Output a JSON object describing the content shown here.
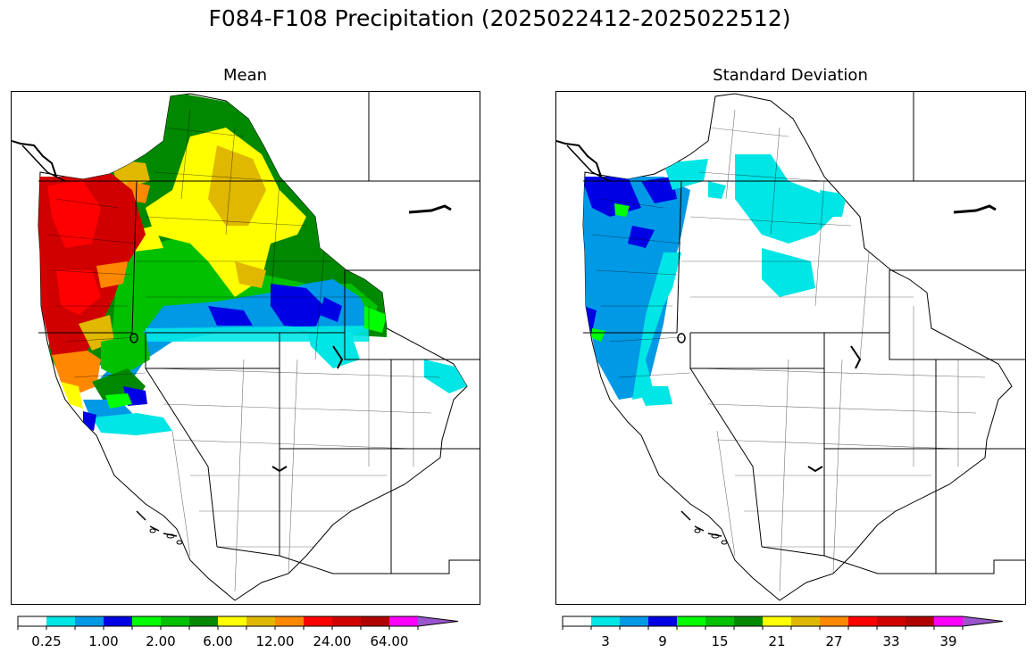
{
  "figure": {
    "title": "F084-F108 Precipitation (2025022412-2025022512)"
  },
  "panels": [
    {
      "title": "Mean",
      "colorbar": {
        "colors": [
          "#ffffff",
          "#00e5e5",
          "#0099e5",
          "#0000e5",
          "#00ff00",
          "#00c000",
          "#008800",
          "#ffff00",
          "#e0b800",
          "#ff8800",
          "#ff0000",
          "#d00000",
          "#b00000",
          "#ff00ff",
          "#9955cc"
        ],
        "tick_labels": [
          "0.25",
          "1.00",
          "2.00",
          "6.00",
          "12.00",
          "24.00",
          "64.00"
        ],
        "extend": "max"
      }
    },
    {
      "title": "Standard Deviation",
      "colorbar": {
        "colors": [
          "#ffffff",
          "#00e5e5",
          "#0099e5",
          "#0000e5",
          "#00ff00",
          "#00c000",
          "#008800",
          "#ffff00",
          "#e0b800",
          "#ff8800",
          "#ff0000",
          "#d00000",
          "#b00000",
          "#ff00ff",
          "#9955cc"
        ],
        "tick_labels": [
          "3",
          "9",
          "15",
          "21",
          "27",
          "33",
          "39"
        ],
        "extend": "max"
      }
    }
  ]
}
